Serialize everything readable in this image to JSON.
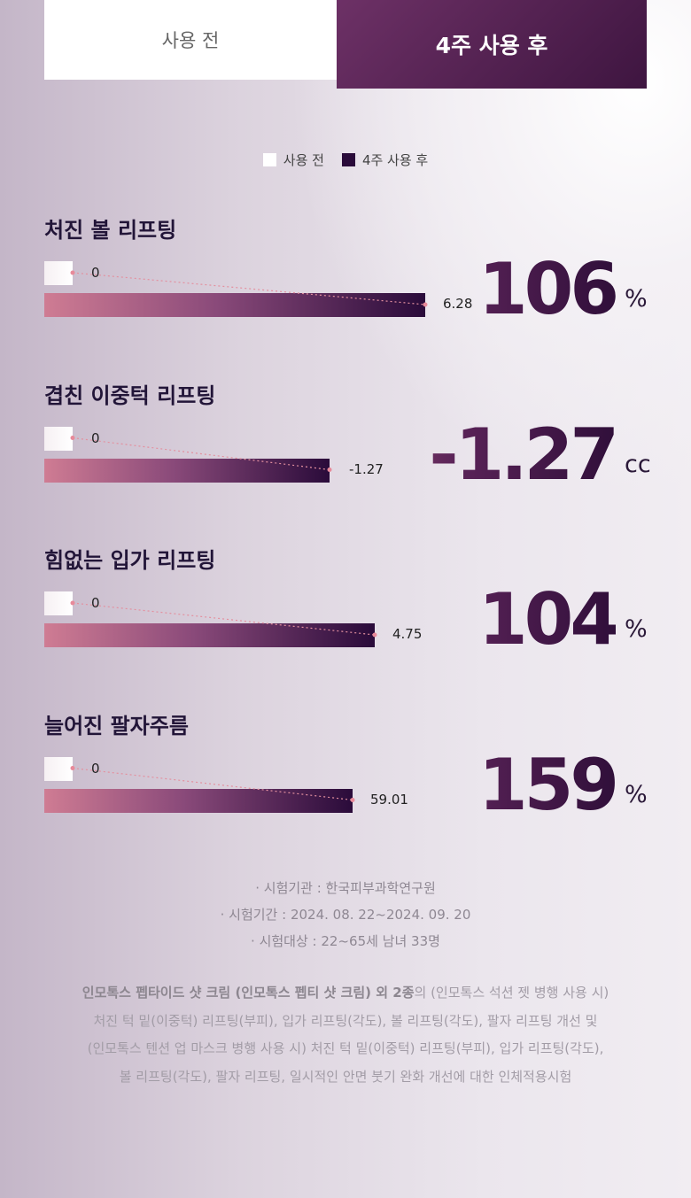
{
  "tabs": [
    "사용 전",
    "4주 사용 후"
  ],
  "legend": [
    "사용 전",
    "4주 사용 후"
  ],
  "items": [
    {
      "title": "처진 볼 리프팅",
      "before": 0,
      "after": 6.28,
      "result": 106,
      "unit": "%"
    },
    {
      "title": "겹친 이중턱 리프팅",
      "before": 0,
      "after": -1.27,
      "result": -1.27,
      "unit": "cc"
    },
    {
      "title": "힘없는 입가 리프팅",
      "before": 0,
      "after": 4.75,
      "result": 104,
      "unit": "%"
    },
    {
      "title": "늘어진 팔자주름",
      "before": 0,
      "after": 59.01,
      "result": 159,
      "unit": "%"
    }
  ],
  "notes": [
    "· 시험기관 : 한국피부과학연구원",
    "· 시험기간 : 2024. 08. 22~2024. 09. 20",
    "· 시험대상 : 22~65세 남녀 33명"
  ],
  "disclaimer": {
    "bold": "인모톡스 펩타이드 샷 크림 (인모톡스 펩티 샷 크림) 외 2종",
    "lines": [
      "의 (인모톡스 석션 젯 병행 사용 시)",
      "처진 턱 밑(이중턱) 리프팅(부피), 입가 리프팅(각도), 볼 리프팅(각도), 팔자 리프팅 개선 및",
      "(인모톡스 텐션 업 마스크 병행 사용 시) 처진 턱 밑(이중턱) 리프팅(부피), 입가 리프팅(각도),",
      "볼 리프팅(각도), 팔자 리프팅, 일시적인 안면 붓기 완화 개선에 대한 인체적용시험"
    ]
  }
}
